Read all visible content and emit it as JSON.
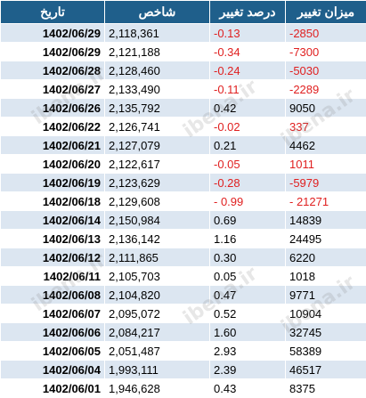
{
  "headers": {
    "date": "تاریخ",
    "index": "شاخص",
    "pct": "درصد تغییر",
    "chg": "میزان تغییر"
  },
  "watermark": "ibena.ir",
  "negative_color": "#e02020",
  "header_color": "#1f5f8b",
  "rows": [
    {
      "date": "1402/06/29",
      "index": "2,118,361",
      "pct": "-0.13",
      "chg": "-2850",
      "neg": true
    },
    {
      "date": "1402/06/29",
      "index": "2,121,188",
      "pct": "-0.34",
      "chg": "-7300",
      "neg": true
    },
    {
      "date": "1402/06/28",
      "index": "2,128,460",
      "pct": "-0.24",
      "chg": "-5030",
      "neg": true
    },
    {
      "date": "1402/06/27",
      "index": "2,133,490",
      "pct": "-0.11",
      "chg": "-2289",
      "neg": true
    },
    {
      "date": "1402/06/26",
      "index": "2,135,792",
      "pct": "0.42",
      "chg": "9050",
      "neg": false
    },
    {
      "date": "1402/06/22",
      "index": "2,126,741",
      "pct": "-0.02",
      "chg": "337",
      "neg": true
    },
    {
      "date": "1402/06/21",
      "index": "2,127,079",
      "pct": "0.21",
      "chg": "4462",
      "neg": false
    },
    {
      "date": "1402/06/20",
      "index": "2,122,617",
      "pct": "-0.05",
      "chg": "1011",
      "neg": true
    },
    {
      "date": "1402/06/19",
      "index": "2,123,629",
      "pct": "-0.28",
      "chg": "-5979",
      "neg": true
    },
    {
      "date": "1402/06/18",
      "index": "2,129,608",
      "pct": "- 0.99",
      "chg": "- 21271",
      "neg": true
    },
    {
      "date": "1402/06/14",
      "index": "2,150,984",
      "pct": "0.69",
      "chg": "14839",
      "neg": false
    },
    {
      "date": "1402/06/13",
      "index": "2,136,142",
      "pct": "1.16",
      "chg": "24495",
      "neg": false
    },
    {
      "date": "1402/06/12",
      "index": "2,111,865",
      "pct": "0.30",
      "chg": "6220",
      "neg": false
    },
    {
      "date": "1402/06/11",
      "index": "2,105,703",
      "pct": "0.05",
      "chg": "1018",
      "neg": false
    },
    {
      "date": "1402/06/08",
      "index": "2,104,820",
      "pct": "0.47",
      "chg": "9771",
      "neg": false
    },
    {
      "date": "1402/06/07",
      "index": "2,095,072",
      "pct": "0.52",
      "chg": "10904",
      "neg": false
    },
    {
      "date": "1402/06/06",
      "index": "2,084,217",
      "pct": "1.60",
      "chg": "32745",
      "neg": false
    },
    {
      "date": "1402/06/05",
      "index": "2,051,487",
      "pct": "2.93",
      "chg": "58389",
      "neg": false
    },
    {
      "date": "1402/06/04",
      "index": "1,993,111",
      "pct": "2.39",
      "chg": "46517",
      "neg": false
    },
    {
      "date": "1402/06/01",
      "index": "1,946,628",
      "pct": "0.43",
      "chg": "8375",
      "neg": false
    }
  ]
}
